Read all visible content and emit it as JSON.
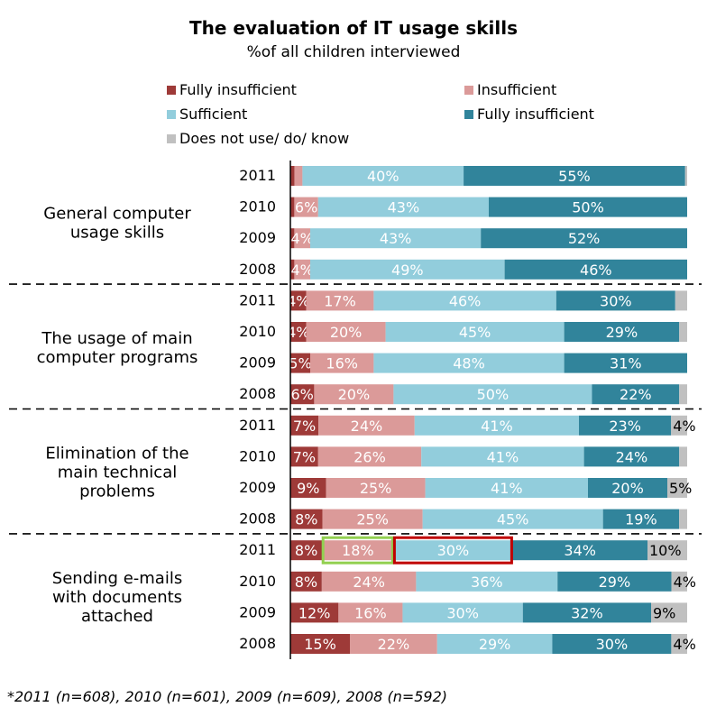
{
  "chart_data": {
    "type": "bar",
    "stacked": true,
    "orientation": "horizontal",
    "title": "The evaluation of IT usage skills",
    "subtitle": "%of all children interviewed",
    "legend_position": "top",
    "footnote": "*2011 (n=608), 2010 (n=601), 2009 (n=609), 2008 (n=592)",
    "xlim": [
      0,
      100
    ],
    "colors": {
      "fully_insufficient_dark": "#9e3a38",
      "insufficient": "#db9a99",
      "sufficient": "#92cddc",
      "fully_sufficient": "#31849b",
      "does_not_use": "#c0c0c0",
      "highlight_green": "#92d050",
      "highlight_red": "#c00000"
    },
    "series": [
      {
        "key": "fi",
        "name": "Fully insufficient",
        "color": "#9e3a38"
      },
      {
        "key": "in",
        "name": "Insufficient",
        "color": "#db9a99"
      },
      {
        "key": "su",
        "name": "Sufficient",
        "color": "#92cddc"
      },
      {
        "key": "fs",
        "name": "Fully insufficient",
        "color": "#31849b"
      },
      {
        "key": "dn",
        "name": "Does not use/ do/ know",
        "color": "#c0c0c0"
      }
    ],
    "groups": [
      {
        "label": "General computer\nusage skills",
        "rows": [
          {
            "year": "2011",
            "values": [
              1,
              2,
              40,
              55,
              0.5
            ],
            "labels": [
              "",
              "",
              "40%",
              "55%",
              ""
            ]
          },
          {
            "year": "2010",
            "values": [
              1,
              6,
              43,
              50,
              0
            ],
            "labels": [
              "",
              "6%",
              "43%",
              "50%",
              ""
            ]
          },
          {
            "year": "2009",
            "values": [
              1,
              4,
              43,
              52,
              0
            ],
            "labels": [
              "",
              "4%",
              "43%",
              "52%",
              ""
            ]
          },
          {
            "year": "2008",
            "values": [
              1,
              4,
              49,
              46,
              0
            ],
            "labels": [
              "",
              "4%",
              "49%",
              "46%",
              ""
            ]
          }
        ]
      },
      {
        "label": "The usage of main\ncomputer programs",
        "rows": [
          {
            "year": "2011",
            "values": [
              4,
              17,
              46,
              30,
              3
            ],
            "labels": [
              "4%",
              "17%",
              "46%",
              "30%",
              ""
            ]
          },
          {
            "year": "2010",
            "values": [
              4,
              20,
              45,
              29,
              2
            ],
            "labels": [
              "4%",
              "20%",
              "45%",
              "29%",
              ""
            ]
          },
          {
            "year": "2009",
            "values": [
              5,
              16,
              48,
              31,
              0
            ],
            "labels": [
              "5%",
              "16%",
              "48%",
              "31%",
              ""
            ]
          },
          {
            "year": "2008",
            "values": [
              6,
              20,
              50,
              22,
              2
            ],
            "labels": [
              "6%",
              "20%",
              "50%",
              "22%",
              ""
            ]
          }
        ]
      },
      {
        "label": "Elimination of the\nmain technical\nproblems",
        "rows": [
          {
            "year": "2011",
            "values": [
              7,
              24,
              41,
              23,
              4
            ],
            "labels": [
              "7%",
              "24%",
              "41%",
              "23%",
              "4%"
            ]
          },
          {
            "year": "2010",
            "values": [
              7,
              26,
              41,
              24,
              2
            ],
            "labels": [
              "7%",
              "26%",
              "41%",
              "24%",
              ""
            ]
          },
          {
            "year": "2009",
            "values": [
              9,
              25,
              41,
              20,
              5
            ],
            "labels": [
              "9%",
              "25%",
              "41%",
              "20%",
              "5%"
            ]
          },
          {
            "year": "2008",
            "values": [
              8,
              25,
              45,
              19,
              2
            ],
            "labels": [
              "8%",
              "25%",
              "45%",
              "19%",
              ""
            ]
          }
        ]
      },
      {
        "label": "Sending e-mails\nwith documents\nattached",
        "rows": [
          {
            "year": "2011",
            "values": [
              8,
              18,
              30,
              34,
              10
            ],
            "labels": [
              "8%",
              "18%",
              "30%",
              "34%",
              "10%"
            ],
            "highlights": [
              {
                "segment": 1,
                "color": "#92d050"
              },
              {
                "segment": 2,
                "color": "#c00000"
              }
            ]
          },
          {
            "year": "2010",
            "values": [
              8,
              24,
              36,
              29,
              4
            ],
            "labels": [
              "8%",
              "24%",
              "36%",
              "29%",
              "4%"
            ]
          },
          {
            "year": "2009",
            "values": [
              12,
              16,
              30,
              32,
              9
            ],
            "labels": [
              "12%",
              "16%",
              "30%",
              "32%",
              "9%"
            ]
          },
          {
            "year": "2008",
            "values": [
              15,
              22,
              29,
              30,
              4
            ],
            "labels": [
              "15%",
              "22%",
              "29%",
              "30%",
              "4%"
            ]
          }
        ]
      }
    ]
  }
}
